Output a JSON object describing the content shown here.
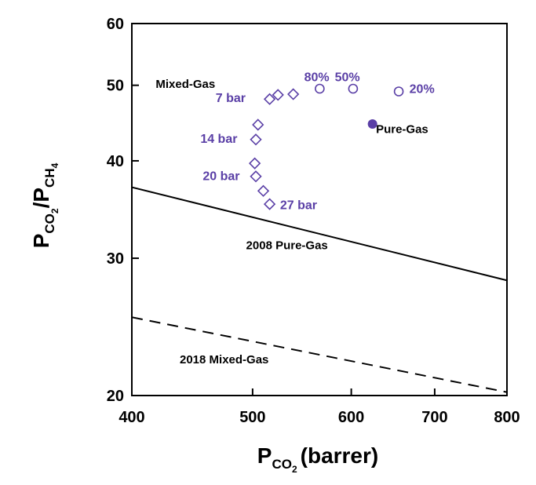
{
  "chart_data": {
    "type": "scatter",
    "xlabel_main": "P",
    "xlabel_sub": "CO",
    "xlabel_subsub": "2",
    "xlabel_unit": "(barrer)",
    "ylabel_p1": "P",
    "ylabel_s1": "CO",
    "ylabel_ss1": "2",
    "ylabel_slash": "/P",
    "ylabel_s2": "CH",
    "ylabel_ss2": "4",
    "x_scale": "log",
    "y_scale": "log",
    "xlim": [
      400,
      800
    ],
    "ylim": [
      20,
      60
    ],
    "x_ticks": [
      {
        "value": 400,
        "label": "400"
      },
      {
        "value": 500,
        "label": "500"
      },
      {
        "value": 600,
        "label": "600"
      },
      {
        "value": 700,
        "label": "700"
      },
      {
        "value": 800,
        "label": "800"
      }
    ],
    "y_ticks": [
      {
        "value": 20,
        "label": "20"
      },
      {
        "value": 30,
        "label": "30"
      },
      {
        "value": 40,
        "label": "40"
      },
      {
        "value": 50,
        "label": "50"
      },
      {
        "value": 60,
        "label": "60"
      }
    ],
    "colors": {
      "accent": "#5a3fa6",
      "axis": "#000000"
    },
    "series": [
      {
        "marker": "open-diamond",
        "points": [
          {
            "x": 516,
            "y": 48.0
          },
          {
            "x": 524,
            "y": 48.6
          },
          {
            "x": 539,
            "y": 48.7
          },
          {
            "x": 505,
            "y": 44.5
          },
          {
            "x": 503,
            "y": 42.6
          },
          {
            "x": 502,
            "y": 39.7
          },
          {
            "x": 503,
            "y": 38.2
          },
          {
            "x": 510,
            "y": 36.6
          },
          {
            "x": 516,
            "y": 35.2
          }
        ]
      },
      {
        "marker": "open-circle",
        "points": [
          {
            "x": 566,
            "y": 49.5
          },
          {
            "x": 602,
            "y": 49.5
          },
          {
            "x": 655,
            "y": 49.1
          }
        ]
      },
      {
        "marker": "filled-circle",
        "points": [
          {
            "x": 624,
            "y": 44.6
          }
        ]
      }
    ],
    "lines": [
      {
        "label": "2008 Pure-Gas",
        "style": "solid",
        "x": [
          400,
          800
        ],
        "y": [
          37.0,
          28.1
        ]
      },
      {
        "label": "2018 Mixed-Gas",
        "style": "dashed",
        "x": [
          400,
          800
        ],
        "y": [
          25.2,
          20.2
        ]
      }
    ],
    "annotations": [
      {
        "text": "Mixed-Gas",
        "x": 418,
        "y": 49.6,
        "style": "black"
      },
      {
        "text": "80%",
        "x": 550,
        "y": 50.6,
        "style": "purple"
      },
      {
        "text": "50%",
        "x": 582,
        "y": 50.6,
        "style": "purple"
      },
      {
        "text": "20%",
        "x": 668,
        "y": 48.9,
        "style": "purple"
      },
      {
        "text": "7 bar",
        "x": 467,
        "y": 47.6,
        "style": "purple"
      },
      {
        "text": "Pure-Gas",
        "x": 628,
        "y": 43.4,
        "style": "black"
      },
      {
        "text": "14 bar",
        "x": 454,
        "y": 42.2,
        "style": "purple"
      },
      {
        "text": "20 bar",
        "x": 456,
        "y": 37.8,
        "style": "purple"
      },
      {
        "text": "27 bar",
        "x": 526,
        "y": 34.7,
        "style": "purple"
      },
      {
        "text": "2008 Pure-Gas",
        "x": 494,
        "y": 30.8,
        "style": "black"
      },
      {
        "text": "2018 Mixed-Gas",
        "x": 437,
        "y": 22.0,
        "style": "black"
      }
    ]
  }
}
